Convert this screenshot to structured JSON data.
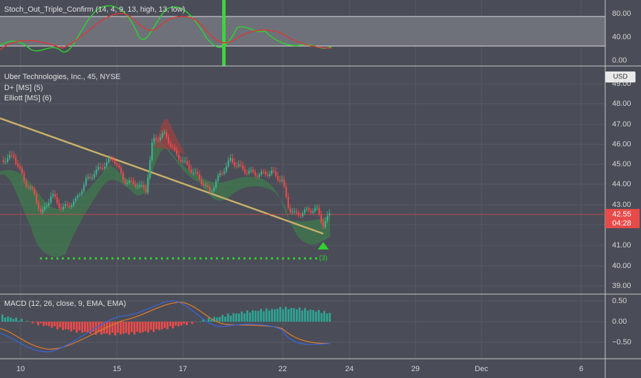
{
  "indicator_top": {
    "title": "Stoch_Out_Triple_Confirm (14, 4, 9, 13, high, 13, low)",
    "axis_labels": [
      "80.00",
      "40.00",
      "0.00"
    ]
  },
  "price_panel": {
    "symbol": "Uber Technologies, Inc., 45, NYSE",
    "indicators": [
      "D+ [MS] (5)",
      "Elliott [MS] (6)"
    ],
    "currency": "USD",
    "axis_labels": [
      "49.00",
      "48.00",
      "47.00",
      "46.00",
      "45.00",
      "44.00",
      "43.00",
      "41.00",
      "40.00",
      "39.00"
    ],
    "last_price": "42.55",
    "countdown": "04:28",
    "wave_label": "(3)"
  },
  "macd": {
    "title": "MACD (12, 26, close, 9, EMA, EMA)",
    "axis_labels": [
      "0.50",
      "0.00",
      "−0.50"
    ]
  },
  "time_axis": [
    "10",
    "15",
    "17",
    "22",
    "24",
    "29",
    "Dec",
    "6"
  ]
}
